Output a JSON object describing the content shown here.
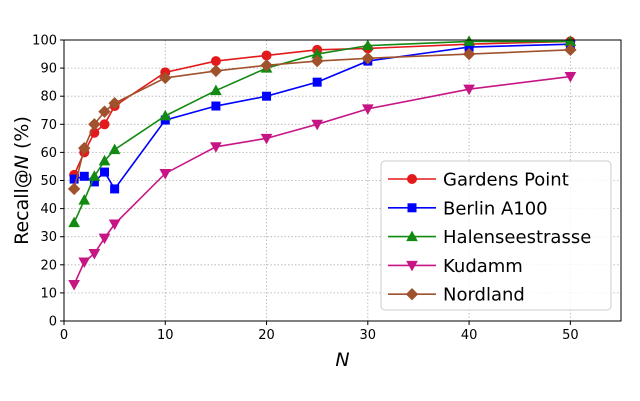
{
  "chart_data": {
    "type": "line",
    "xlabel": "N",
    "ylabel_prefix": "Recall@",
    "ylabel_var": "N",
    "ylabel_suffix": " (%)",
    "xlim": [
      0,
      55
    ],
    "ylim": [
      0,
      100
    ],
    "xticks": [
      0,
      10,
      20,
      30,
      40,
      50
    ],
    "yticks": [
      0,
      10,
      20,
      30,
      40,
      50,
      60,
      70,
      80,
      90,
      100
    ],
    "grid": true,
    "legend_position": "lower-right",
    "series": [
      {
        "name": "Gardens Point",
        "color": "#e31a1c",
        "marker": "circle",
        "x": [
          1,
          2,
          3,
          4,
          5,
          10,
          15,
          20,
          25,
          30,
          40,
          50
        ],
        "y": [
          52,
          60,
          67,
          70,
          76.5,
          88.5,
          92.5,
          94.5,
          96.5,
          97,
          98.5,
          99.5
        ]
      },
      {
        "name": "Berlin A100",
        "color": "#0000ff",
        "marker": "square",
        "x": [
          1,
          2,
          3,
          4,
          5,
          10,
          15,
          20,
          25,
          30,
          40,
          50
        ],
        "y": [
          50.5,
          51.5,
          49.5,
          53,
          47,
          71.5,
          76.5,
          80,
          85,
          92.5,
          97.5,
          98.5
        ]
      },
      {
        "name": "Halenseestrasse",
        "color": "#138a13",
        "marker": "triangle-up",
        "x": [
          1,
          2,
          3,
          4,
          5,
          10,
          15,
          20,
          25,
          30,
          40,
          50
        ],
        "y": [
          35,
          43,
          51.5,
          57,
          61,
          73,
          82,
          90,
          95,
          98,
          99.5,
          99.5
        ]
      },
      {
        "name": "Kudamm",
        "color": "#c71585",
        "marker": "triangle-down",
        "x": [
          1,
          2,
          3,
          4,
          5,
          10,
          15,
          20,
          25,
          30,
          40,
          50
        ],
        "y": [
          13,
          21,
          24,
          29.5,
          34.5,
          52.5,
          62,
          65,
          70,
          75.5,
          82.5,
          87
        ]
      },
      {
        "name": "Nordland",
        "color": "#a0522d",
        "marker": "diamond",
        "x": [
          1,
          2,
          3,
          4,
          5,
          10,
          15,
          20,
          25,
          30,
          40,
          50
        ],
        "y": [
          47,
          61.5,
          70,
          74.5,
          77.5,
          86.5,
          89,
          91,
          92.5,
          93.5,
          95,
          96.5
        ]
      }
    ]
  }
}
